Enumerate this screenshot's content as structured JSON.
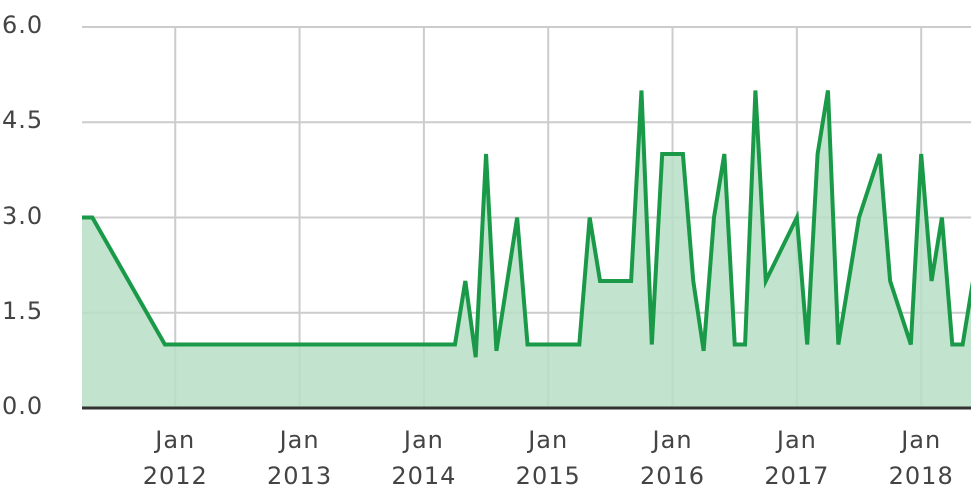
{
  "chart_data": {
    "type": "area",
    "x": [
      "2011-04",
      "2011-05",
      "2011-12",
      "2014-04",
      "2014-05",
      "2014-06",
      "2014-07",
      "2014-08",
      "2014-10",
      "2014-11",
      "2015-04",
      "2015-05",
      "2015-06",
      "2015-09",
      "2015-10",
      "2015-11",
      "2015-12",
      "2016-02",
      "2016-03",
      "2016-04",
      "2016-05",
      "2016-06",
      "2016-07",
      "2016-08",
      "2016-09",
      "2016-10",
      "2017-01",
      "2017-02",
      "2017-03",
      "2017-04",
      "2017-05",
      "2017-06",
      "2017-07",
      "2017-09",
      "2017-10",
      "2017-12",
      "2018-01",
      "2018-02",
      "2018-03",
      "2018-04",
      "2018-05",
      "2018-06"
    ],
    "series": [
      {
        "color": "#1a9a48",
        "fill": "#b7dfc5",
        "values": [
          3.0,
          3.0,
          1.0,
          1.0,
          2.0,
          0.8,
          4.0,
          0.9,
          3.0,
          1.0,
          1.0,
          3.0,
          2.0,
          2.0,
          5.0,
          1.0,
          4.0,
          4.0,
          2.0,
          0.9,
          3.0,
          4.0,
          1.0,
          1.0,
          5.0,
          2.0,
          3.0,
          1.0,
          4.0,
          5.0,
          1.0,
          2.0,
          3.0,
          4.0,
          2.0,
          1.0,
          4.0,
          2.0,
          3.0,
          1.0,
          1.0,
          2.0
        ]
      }
    ],
    "xlim": [
      "2011-04",
      "2018-06"
    ],
    "xticks": [
      {
        "value": "2012-01",
        "label": "Jan 2012"
      },
      {
        "value": "2013-01",
        "label": "Jan 2013"
      },
      {
        "value": "2014-01",
        "label": "Jan 2014"
      },
      {
        "value": "2015-01",
        "label": "Jan 2015"
      },
      {
        "value": "2016-01",
        "label": "Jan 2016"
      },
      {
        "value": "2017-01",
        "label": "Jan 2017"
      },
      {
        "value": "2018-01",
        "label": "Jan 2018"
      }
    ],
    "ylim": [
      0,
      6
    ],
    "yticks": [
      {
        "value": 0,
        "label": "0.0"
      },
      1.5,
      {
        "value": 3,
        "label": "3.0"
      },
      4.5,
      {
        "value": 6,
        "label": "6.0"
      }
    ],
    "grid": true
  }
}
